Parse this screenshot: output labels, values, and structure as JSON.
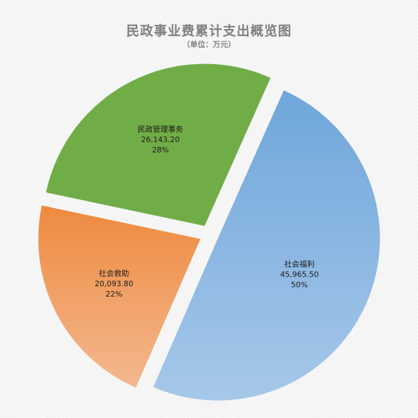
{
  "chart_data": {
    "type": "pie",
    "title": "民政事业费累计支出概览图",
    "subtitle": "（单位：万元）",
    "slices": [
      {
        "name": "社会福利",
        "value": 45965.5,
        "value_label": "45,965.50",
        "percent_label": "50%",
        "color": "#6fa6da",
        "color_light": "#a6c8e9"
      },
      {
        "name": "社会救助",
        "value": 20093.8,
        "value_label": "20,093.80",
        "percent_label": "22%",
        "color": "#ee8a3e",
        "color_light": "#f4b890"
      },
      {
        "name": "民政管理事务",
        "value": 26143.2,
        "value_label": "26,143.20",
        "percent_label": "28%",
        "color": "#71ad47",
        "color_light": "#71ad47"
      }
    ]
  }
}
